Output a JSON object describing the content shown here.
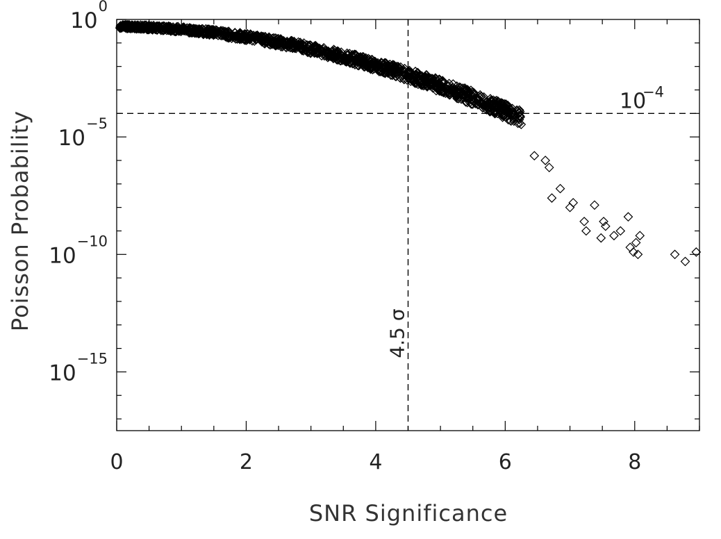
{
  "chart_data": {
    "type": "scatter",
    "title": "",
    "xlabel": "SNR Significance",
    "ylabel": "Poisson Probability",
    "xlim": [
      0,
      9
    ],
    "ylim_exp": [
      -17.5,
      0
    ],
    "yscale": "log",
    "grid": false,
    "marker": "diamond",
    "marker_color": "#000000",
    "x_ticks": [
      {
        "value": 0,
        "label": "0"
      },
      {
        "value": 2,
        "label": "2"
      },
      {
        "value": 4,
        "label": "4"
      },
      {
        "value": 6,
        "label": "6"
      },
      {
        "value": 8,
        "label": "8"
      }
    ],
    "y_ticks": [
      {
        "exp": 0,
        "base": "10",
        "sup": "0"
      },
      {
        "exp": -5,
        "base": "10",
        "sup": "−5"
      },
      {
        "exp": -10,
        "base": "10",
        "sup": "−10"
      },
      {
        "exp": -15,
        "base": "10",
        "sup": "−15"
      }
    ],
    "reference_lines": [
      {
        "orientation": "horizontal",
        "value_exp": -4,
        "label_base": "10",
        "label_sup": "−4"
      },
      {
        "orientation": "vertical",
        "value": 4.5,
        "label": "4.5 σ"
      }
    ],
    "outlier_points": [
      {
        "x": 6.45,
        "y_exp": -5.8
      },
      {
        "x": 6.62,
        "y_exp": -6.0
      },
      {
        "x": 6.68,
        "y_exp": -6.3
      },
      {
        "x": 6.72,
        "y_exp": -7.6
      },
      {
        "x": 6.85,
        "y_exp": -7.2
      },
      {
        "x": 7.05,
        "y_exp": -7.8
      },
      {
        "x": 7.0,
        "y_exp": -8.0
      },
      {
        "x": 7.22,
        "y_exp": -8.6
      },
      {
        "x": 7.25,
        "y_exp": -9.0
      },
      {
        "x": 7.38,
        "y_exp": -7.9
      },
      {
        "x": 7.48,
        "y_exp": -9.3
      },
      {
        "x": 7.52,
        "y_exp": -8.6
      },
      {
        "x": 7.55,
        "y_exp": -8.8
      },
      {
        "x": 7.68,
        "y_exp": -9.2
      },
      {
        "x": 7.78,
        "y_exp": -9.0
      },
      {
        "x": 7.9,
        "y_exp": -8.4
      },
      {
        "x": 7.93,
        "y_exp": -9.7
      },
      {
        "x": 7.98,
        "y_exp": -9.9
      },
      {
        "x": 8.02,
        "y_exp": -9.5
      },
      {
        "x": 8.05,
        "y_exp": -10.0
      },
      {
        "x": 8.08,
        "y_exp": -9.2
      },
      {
        "x": 8.62,
        "y_exp": -10.0
      },
      {
        "x": 8.78,
        "y_exp": -10.3
      },
      {
        "x": 8.95,
        "y_exp": -9.9
      }
    ]
  }
}
